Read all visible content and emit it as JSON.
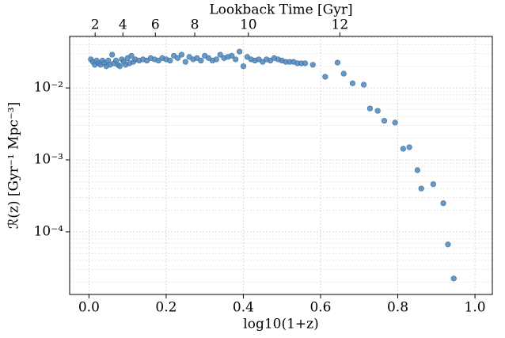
{
  "chart_data": {
    "type": "scatter",
    "title": "Lookback Time [Gyr]",
    "xlabel": "log10(1+z)",
    "ylabel": "ℛ(z) [Gyr⁻¹ Mpc⁻³]",
    "color": "#4f86bd",
    "log_y": true,
    "grid": true,
    "xlim": [
      -0.05,
      1.045
    ],
    "xticks": [
      {
        "value": 0,
        "label": "0.0"
      },
      0.2,
      0.4,
      0.6,
      0.8,
      {
        "value": 1,
        "label": "1.0"
      }
    ],
    "ylim": [
      1.35e-05,
      0.052
    ],
    "yticks": [
      {
        "value": 0.01,
        "label": "10⁻²"
      },
      {
        "value": 0.001,
        "label": "10⁻³"
      },
      {
        "value": 0.0001,
        "label": "10⁻⁴"
      }
    ],
    "x2ticks": [
      {
        "value": 0.016,
        "label": "2"
      },
      {
        "value": 0.088,
        "label": "4"
      },
      {
        "value": 0.172,
        "label": "6"
      },
      {
        "value": 0.274,
        "label": "8"
      },
      {
        "value": 0.413,
        "label": "10"
      },
      {
        "value": 0.65,
        "label": "12"
      }
    ],
    "x": [
      0.005,
      0.01,
      0.015,
      0.02,
      0.025,
      0.03,
      0.035,
      0.04,
      0.045,
      0.05,
      0.055,
      0.06,
      0.065,
      0.07,
      0.075,
      0.08,
      0.085,
      0.09,
      0.095,
      0.1,
      0.105,
      0.11,
      0.115,
      0.12,
      0.13,
      0.14,
      0.15,
      0.16,
      0.17,
      0.18,
      0.19,
      0.2,
      0.21,
      0.22,
      0.23,
      0.24,
      0.25,
      0.26,
      0.27,
      0.28,
      0.29,
      0.3,
      0.31,
      0.32,
      0.33,
      0.34,
      0.35,
      0.36,
      0.37,
      0.38,
      0.39,
      0.4,
      0.41,
      0.42,
      0.43,
      0.44,
      0.45,
      0.46,
      0.47,
      0.48,
      0.49,
      0.5,
      0.51,
      0.52,
      0.53,
      0.54,
      0.55,
      0.56,
      0.58,
      0.612,
      0.644,
      0.66,
      0.683,
      0.712,
      0.728,
      0.748,
      0.765,
      0.793,
      0.814,
      0.83,
      0.851,
      0.861,
      0.892,
      0.918,
      0.93,
      0.945
    ],
    "values": [
      0.025,
      0.023,
      0.021,
      0.024,
      0.022,
      0.021,
      0.024,
      0.022,
      0.02,
      0.024,
      0.021,
      0.029,
      0.022,
      0.024,
      0.021,
      0.02,
      0.025,
      0.023,
      0.021,
      0.026,
      0.022,
      0.028,
      0.023,
      0.025,
      0.024,
      0.025,
      0.024,
      0.026,
      0.025,
      0.024,
      0.026,
      0.025,
      0.024,
      0.028,
      0.026,
      0.029,
      0.023,
      0.027,
      0.025,
      0.026,
      0.024,
      0.028,
      0.026,
      0.024,
      0.025,
      0.029,
      0.026,
      0.027,
      0.028,
      0.025,
      0.032,
      0.02,
      0.027,
      0.025,
      0.024,
      0.025,
      0.023,
      0.025,
      0.024,
      0.026,
      0.025,
      0.024,
      0.023,
      0.023,
      0.023,
      0.022,
      0.022,
      0.022,
      0.021,
      0.0143,
      0.0225,
      0.0158,
      0.0116,
      0.0111,
      0.00518,
      0.0048,
      0.0035,
      0.0033,
      0.00143,
      0.0015,
      0.00072,
      0.0004,
      0.00046,
      0.00025,
      6.7e-05,
      2.25e-05
    ]
  }
}
